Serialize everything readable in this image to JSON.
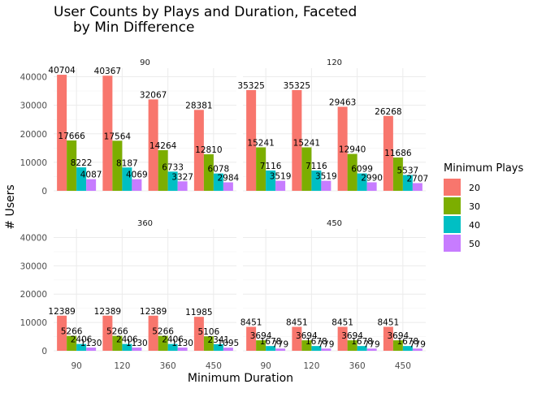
{
  "chart_data": {
    "type": "bar",
    "title_line1": "User Counts by Plays and Duration, Faceted",
    "title_line2": "by Min Difference",
    "xlabel": "Minimum Duration",
    "ylabel": "# Users",
    "categories": [
      "90",
      "120",
      "360",
      "450"
    ],
    "ylim": [
      0,
      43000
    ],
    "yticks": [
      0,
      10000,
      20000,
      30000,
      40000
    ],
    "grid": true,
    "legend": {
      "title": "Minimum Plays",
      "position": "right",
      "entries": [
        {
          "label": "20",
          "color": "#F8766D"
        },
        {
          "label": "30",
          "color": "#7CAE00"
        },
        {
          "label": "40",
          "color": "#00BFC4"
        },
        {
          "label": "50",
          "color": "#C77CFF"
        }
      ]
    },
    "facets": [
      {
        "label": "90",
        "series": [
          {
            "name": "20",
            "values": [
              40704,
              40367,
              32067,
              28381
            ]
          },
          {
            "name": "30",
            "values": [
              17666,
              17564,
              14264,
              12810
            ]
          },
          {
            "name": "40",
            "values": [
              8222,
              8187,
              6733,
              6078
            ]
          },
          {
            "name": "50",
            "values": [
              4087,
              4069,
              3327,
              2984
            ]
          }
        ]
      },
      {
        "label": "120",
        "series": [
          {
            "name": "20",
            "values": [
              35325,
              35325,
              29463,
              26268
            ]
          },
          {
            "name": "30",
            "values": [
              15241,
              15241,
              12940,
              11686
            ]
          },
          {
            "name": "40",
            "values": [
              7116,
              7116,
              6099,
              5537
            ]
          },
          {
            "name": "50",
            "values": [
              3519,
              3519,
              2990,
              2707
            ]
          }
        ]
      },
      {
        "label": "360",
        "series": [
          {
            "name": "20",
            "values": [
              12389,
              12389,
              12389,
              11985
            ]
          },
          {
            "name": "30",
            "values": [
              5266,
              5266,
              5266,
              5106
            ]
          },
          {
            "name": "40",
            "values": [
              2406,
              2406,
              2406,
              2341
            ]
          },
          {
            "name": "50",
            "values": [
              1130,
              1130,
              1130,
              1095
            ]
          }
        ]
      },
      {
        "label": "450",
        "series": [
          {
            "name": "20",
            "values": [
              8451,
              8451,
              8451,
              8451
            ]
          },
          {
            "name": "30",
            "values": [
              3694,
              3694,
              3694,
              3694
            ]
          },
          {
            "name": "40",
            "values": [
              1678,
              1678,
              1678,
              1678
            ]
          },
          {
            "name": "50",
            "values": [
              779,
              779,
              779,
              779
            ]
          }
        ]
      }
    ]
  }
}
